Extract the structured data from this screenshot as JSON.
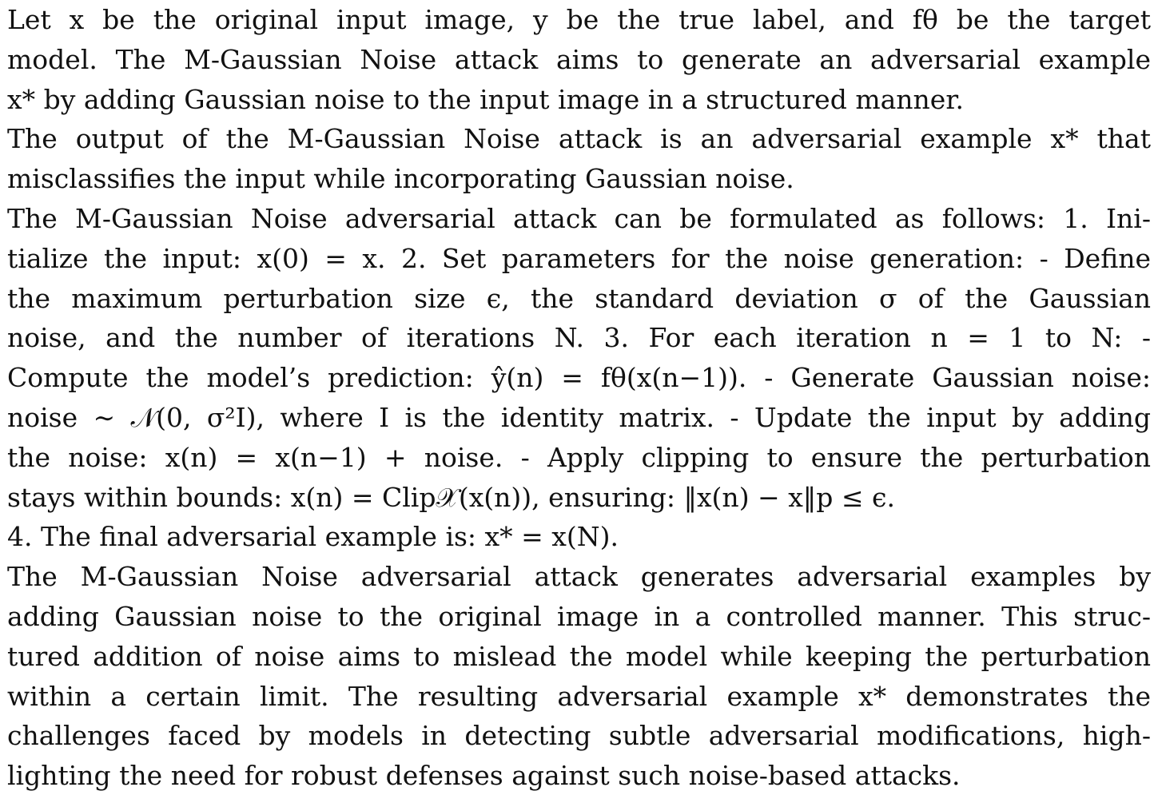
{
  "paragraphs": [
    {
      "lines": [
        "Let x be the original input image, y be the true label, and fθ be the target",
        "model. The M-Gaussian Noise attack aims to generate an adversarial example",
        "x* by adding Gaussian noise to the input image in a structured manner."
      ]
    },
    {
      "lines": [
        "The output of the M-Gaussian Noise attack is an adversarial example x* that",
        "misclassifies the input while incorporating Gaussian noise."
      ]
    },
    {
      "lines": [
        "The M-Gaussian Noise adversarial attack can be formulated as follows: 1. Ini-",
        "tialize the input: x(0) = x. 2. Set parameters for the noise generation: - Define",
        "the maximum perturbation size ϵ, the standard deviation σ of the Gaussian",
        "noise, and the number of iterations N. 3. For each iteration n = 1 to N: -",
        "Compute the model’s prediction: ŷ(n) = fθ(x(n−1)). - Generate Gaussian noise:",
        "noise ∼ 𝒩(0, σ²I), where I is the identity matrix. - Update the input by adding",
        "the noise: x(n) = x(n−1) + noise. - Apply clipping to ensure the perturbation",
        "stays within bounds: x(n) = Clip𝒳(x(n)), ensuring: ‖x(n) − x‖p ≤ ϵ."
      ]
    },
    {
      "lines": [
        "4. The final adversarial example is: x* = x(N)."
      ]
    },
    {
      "lines": [
        "The M-Gaussian Noise adversarial attack generates adversarial examples by",
        "adding Gaussian noise to the original image in a controlled manner. This struc-",
        "tured addition of noise aims to mislead the model while keeping the perturbation",
        "within a certain limit. The resulting adversarial example x* demonstrates the",
        "challenges faced by models in detecting subtle adversarial modifications, high-",
        "lighting the need for robust defenses against such noise-based attacks."
      ]
    }
  ]
}
